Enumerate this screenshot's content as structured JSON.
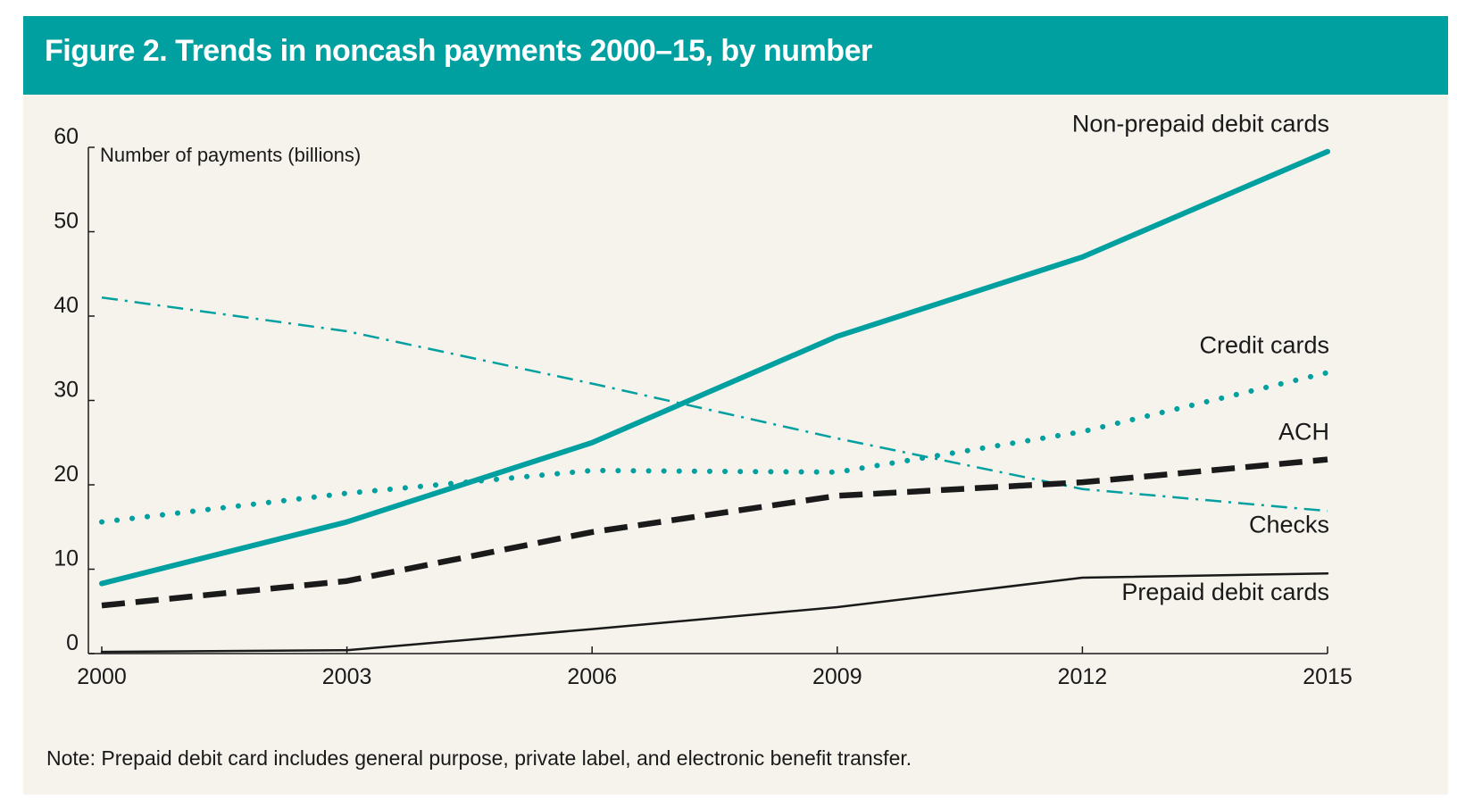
{
  "figure": {
    "title": "Figure 2. Trends in noncash payments 2000–15, by number",
    "note": "Note: Prepaid debit card includes general purpose, private label, and electronic benefit transfer."
  },
  "chart_data": {
    "type": "line",
    "title": "Figure 2. Trends in noncash payments 2000–15, by number",
    "xlabel": "",
    "ylabel": "Number of payments (billions)",
    "x": [
      2000,
      2003,
      2006,
      2009,
      2012,
      2015
    ],
    "xlim": [
      2000,
      2015
    ],
    "ylim": [
      0,
      60
    ],
    "xticks": [
      "2000",
      "2003",
      "2006",
      "2009",
      "2012",
      "2015"
    ],
    "yticks": [
      "0",
      "10",
      "20",
      "30",
      "40",
      "50",
      "60"
    ],
    "grid": false,
    "legend": "direct labels at line ends",
    "series": [
      {
        "name": "Non-prepaid debit cards",
        "values": [
          8.3,
          15.6,
          25.0,
          37.6,
          47.0,
          59.5
        ],
        "color": "#00a0a0",
        "style": "solid-thick"
      },
      {
        "name": "Credit cards",
        "values": [
          15.6,
          19.0,
          21.7,
          21.5,
          26.3,
          33.3
        ],
        "color": "#00a0a0",
        "style": "dotted"
      },
      {
        "name": "ACH",
        "values": [
          5.7,
          8.6,
          14.4,
          18.7,
          20.3,
          23.0
        ],
        "color": "#1a1a1a",
        "style": "dashed-thick"
      },
      {
        "name": "Checks",
        "values": [
          42.2,
          38.2,
          32.0,
          25.5,
          19.5,
          16.9
        ],
        "color": "#00a0a0",
        "style": "dash-dot"
      },
      {
        "name": "Prepaid debit cards",
        "values": [
          0.2,
          0.4,
          2.9,
          5.5,
          9.0,
          9.5
        ],
        "color": "#1a1a1a",
        "style": "solid-thin"
      }
    ]
  }
}
